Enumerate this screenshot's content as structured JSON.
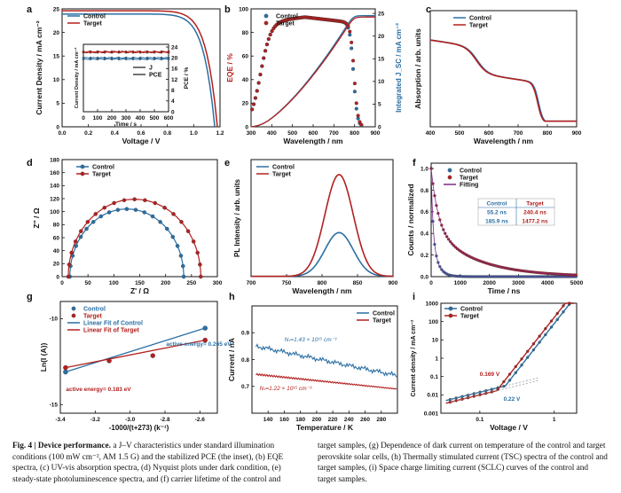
{
  "colors": {
    "control": "#2a6fa4",
    "target": "#b2201f",
    "fit": "#7a2a8a",
    "axis": "#111111"
  },
  "chart_data": [
    {
      "panel": "a",
      "type": "line",
      "xlabel": "Voltage / V",
      "ylabel": "Current Density / mA cm⁻²",
      "xlim": [
        0,
        1.2
      ],
      "ylim": [
        0,
        25
      ],
      "xticks": [
        0.0,
        0.2,
        0.4,
        0.6,
        0.8,
        1.0,
        1.2
      ],
      "xtick_labels": [
        "0.0",
        "0.2",
        "0.4",
        "0.6",
        "0.8",
        "1.0",
        "1.2"
      ],
      "yticks": [
        0,
        5,
        10,
        15,
        20,
        25
      ],
      "legend": [
        "Control",
        "Target"
      ],
      "series": [
        {
          "name": "Control",
          "jsc": 23.9,
          "voc": 1.16
        },
        {
          "name": "Target",
          "jsc": 24.6,
          "voc": 1.18
        }
      ],
      "inset": {
        "xlabel": "Time / s",
        "ylabel": "Current Density / mA cm⁻²",
        "ylabel_right": "PCE / %",
        "xticks": [
          0,
          100,
          200,
          300,
          400,
          500,
          600
        ],
        "xtick_labels": [
          "0",
          "100",
          "200",
          "300",
          "400",
          "500",
          "600"
        ],
        "yticks_right": [
          0,
          4,
          8,
          12,
          16,
          20,
          24
        ],
        "ytick_labels_right": [
          "0",
          "4",
          "8",
          "12",
          "16",
          "20",
          "24"
        ],
        "legend": [
          "J",
          "PCE"
        ],
        "series": [
          {
            "name": "Control J",
            "value": 20.0
          },
          {
            "name": "Control PCE",
            "value": 19.5
          },
          {
            "name": "Target J",
            "value": 22.0
          },
          {
            "name": "Target PCE",
            "value": 22.3
          }
        ]
      }
    },
    {
      "panel": "b",
      "type": "line",
      "xlabel": "Wavelength / nm",
      "ylabel": "EQE / %",
      "ylabel_right": "Integrated J_SC / mA cm⁻²",
      "xlim": [
        300,
        900
      ],
      "ylim": [
        0,
        100
      ],
      "xticks": [
        300,
        400,
        500,
        600,
        700,
        800,
        900
      ],
      "xtick_labels": [
        "300",
        "400",
        "500",
        "600",
        "700",
        "800",
        "900"
      ],
      "yticks": [
        0,
        20,
        40,
        60,
        80,
        100
      ],
      "ytick_labels": [
        "0",
        "20",
        "40",
        "60",
        "80",
        "100"
      ],
      "yticks_right": [
        0,
        5,
        10,
        15,
        20,
        25
      ],
      "ytick_labels_right": [
        "0",
        "5",
        "10",
        "15",
        "20",
        "25"
      ],
      "legend": [
        "Control",
        "Target"
      ],
      "eqe_peak": 93,
      "integrated_jsc_max": 24.5
    },
    {
      "panel": "c",
      "type": "line",
      "xlabel": "Wavelength / nm",
      "ylabel": "Absorption / arb. units",
      "xlim": [
        400,
        900
      ],
      "xticks": [
        400,
        500,
        600,
        700,
        800,
        900
      ],
      "xtick_labels": [
        "400",
        "500",
        "600",
        "700",
        "800",
        "900"
      ],
      "legend": [
        "Control",
        "Target"
      ]
    },
    {
      "panel": "d",
      "type": "scatter",
      "xlabel": "Z' / Ω",
      "ylabel": "Z'' / Ω",
      "xlim": [
        0,
        300
      ],
      "ylim": [
        0,
        180
      ],
      "xticks": [
        0,
        50,
        100,
        150,
        200,
        250,
        300
      ],
      "xtick_labels": [
        "0",
        "50",
        "100",
        "150",
        "200",
        "250",
        "300"
      ],
      "yticks": [
        0,
        20,
        40,
        60,
        80,
        100,
        120,
        140,
        160,
        180
      ],
      "ytick_labels": [
        "0",
        "20",
        "40",
        "60",
        "80",
        "100",
        "120",
        "140",
        "160",
        "180"
      ],
      "legend": [
        "Control",
        "Target"
      ],
      "series": [
        {
          "name": "Control",
          "x_start": 15,
          "x_end": 235,
          "peak": 104
        },
        {
          "name": "Target",
          "x_start": 12,
          "x_end": 268,
          "peak": 119
        }
      ]
    },
    {
      "panel": "e",
      "type": "line",
      "xlabel": "Wavelength / nm",
      "ylabel": "PL Intensity / arb. units",
      "xlim": [
        700,
        900
      ],
      "xticks": [
        700,
        750,
        800,
        850,
        900
      ],
      "xtick_labels": [
        "700",
        "750",
        "800",
        "850",
        "900"
      ],
      "legend": [
        "Control",
        "Target"
      ],
      "series": [
        {
          "name": "Control",
          "center": 824,
          "amplitude": 0.43
        },
        {
          "name": "Target",
          "center": 824,
          "amplitude": 1.0
        }
      ]
    },
    {
      "panel": "f",
      "type": "scatter",
      "xlabel": "Time / ns",
      "ylabel": "Counts / normalized",
      "xlim": [
        0,
        5000
      ],
      "ylim": [
        0,
        1.0
      ],
      "xticks": [
        0,
        1000,
        2000,
        3000,
        4000,
        5000
      ],
      "xtick_labels": [
        "0",
        "1000",
        "2000",
        "3000",
        "4000",
        "5000"
      ],
      "yticks": [
        0.0,
        0.2,
        0.4,
        0.6,
        0.8,
        1.0
      ],
      "ytick_labels": [
        "0.0",
        "0.2",
        "0.4",
        "0.6",
        "0.8",
        "1.0"
      ],
      "legend": [
        "Control",
        "Target",
        "Fitting"
      ],
      "table": {
        "headers": [
          "Control",
          "Target"
        ],
        "rows": [
          [
            "55.2 ns",
            "240.4 ns"
          ],
          [
            "185.9 ns",
            "1477.2 ns"
          ]
        ]
      }
    },
    {
      "panel": "g",
      "type": "scatter",
      "xlabel": "-1000/(t+273) (k⁻¹)",
      "ylabel": "Ln(I (A))",
      "xlim": [
        -3.4,
        -2.5
      ],
      "ylim": [
        -15,
        -10
      ],
      "xticks": [
        -3.4,
        -3.2,
        -3.0,
        -2.8,
        -2.6
      ],
      "xtick_labels": [
        "-3.4",
        "-3.2",
        "-3.0",
        "-2.8",
        "-2.6"
      ],
      "yticks": [
        -15,
        -10
      ],
      "ytick_labels": [
        "-15",
        "-10"
      ],
      "legend": [
        "Control",
        "Target",
        "Linear Fit of Control",
        "Linear Fit of Target"
      ],
      "annotations": [
        "active energy= 0.265 eV",
        "active energy= 0.183 eV"
      ],
      "series": [
        {
          "name": "Control",
          "x": [
            -3.37,
            -2.57
          ],
          "y": [
            -13.1,
            -10.55
          ]
        },
        {
          "name": "Target",
          "x": [
            -3.37,
            -3.12,
            -2.87,
            -2.57
          ],
          "y": [
            -12.85,
            -12.45,
            -12.15,
            -11.25
          ]
        }
      ]
    },
    {
      "panel": "h",
      "type": "line",
      "xlabel": "Temperature / K",
      "ylabel": "Current / nA",
      "xlim": [
        120,
        300
      ],
      "ylim": [
        0.6,
        1.0
      ],
      "xticks": [
        140,
        160,
        180,
        200,
        220,
        240,
        260,
        280
      ],
      "xtick_labels": [
        "140",
        "160",
        "180",
        "200",
        "220",
        "240",
        "260",
        "280"
      ],
      "yticks": [
        0.7,
        0.8,
        0.9
      ],
      "ytick_labels": [
        "0.7",
        "0.8",
        "0.9"
      ],
      "legend": [
        "Control",
        "Target"
      ],
      "annotations": [
        "Nₜ=1.43 × 10¹⁵ cm⁻³",
        "Nₜ=1.22 × 10¹⁵ cm⁻³"
      ]
    },
    {
      "panel": "i",
      "type": "line",
      "xlabel": "Voltage / V",
      "ylabel": "Current density / mA cm⁻²",
      "xscale": "log",
      "yscale": "log",
      "xtick_labels": [
        "0.1",
        "1"
      ],
      "ytick_labels": [
        "1000",
        "100",
        "10",
        "1",
        "0.1",
        "0.01",
        "0.001"
      ],
      "legend": [
        "Control",
        "Target"
      ],
      "annotations": [
        "0.169 V",
        "0.22 V"
      ]
    }
  ],
  "caption": {
    "bold_lead": "Fig. 4 | Device performance.",
    "left_text": " a J–V characteristics under standard illumination conditions (100 mW cm⁻², AM 1.5 G) and the stabilized PCE (the inset), (b) EQE spectra, (c) UV-vis absorption spectra, (d) Nyquist plots under dark condition, (e) steady-state photoluminescence spectra, and (f) carrier lifetime of the control and",
    "right_text": "target samples, (g) Dependence of dark current on temperature of the control and target perovskite solar cells, (h) Thermally stimulated current (TSC) spectra of the control and target samples, (i) Space charge limiting current (SCLC) curves of the control and target samples."
  }
}
